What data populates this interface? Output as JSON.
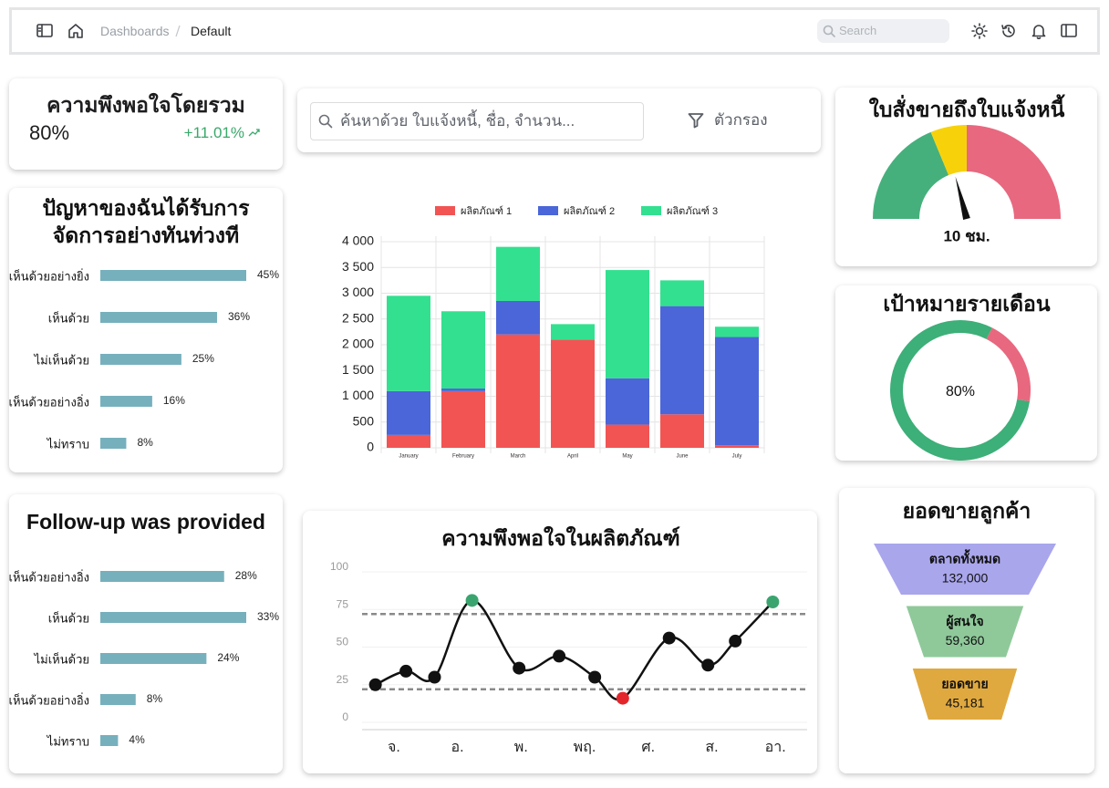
{
  "header": {
    "breadcrumb": [
      "Dashboards",
      "Default"
    ],
    "search_placeholder": "Search"
  },
  "kpi": {
    "title": "ความพึงพอใจโดยรวม",
    "value": "80%",
    "change": "+11.01%"
  },
  "search_bar": {
    "placeholder": "ค้นหาด้วย ใบแจ้งหนี้, ชื่อ, จำนวน...",
    "filter_label": "ตัวกรอง"
  },
  "chart_data": [
    {
      "type": "bar",
      "orientation": "horizontal",
      "title": [
        "ปัญหาของฉันได้รับการ",
        "จัดการอย่างทันท่วงที"
      ],
      "categories": [
        "เห็นด้วยอย่างยิ่ง",
        "เห็นด้วย",
        "ไม่เห็นด้วย",
        "เห็นด้วยอย่างอิ่ง",
        "ไม่ทราบ"
      ],
      "values": [
        45,
        36,
        25,
        16,
        8
      ],
      "value_labels": [
        "45%",
        "36%",
        "25%",
        "16%",
        "8%"
      ],
      "color": "#76b0bd"
    },
    {
      "type": "bar",
      "orientation": "horizontal",
      "title": "Follow-up was provided",
      "categories": [
        "เห็นด้วยอย่างอิ่ง",
        "เห็นด้วย",
        "ไม่เห็นด้วย",
        "เห็นด้วยอย่างอิ่ง",
        "ไม่ทราบ"
      ],
      "values": [
        28,
        33,
        24,
        8,
        4
      ],
      "value_labels": [
        "28%",
        "33%",
        "24%",
        "8%",
        "4%"
      ],
      "color": "#76b0bd"
    },
    {
      "type": "bar",
      "stacked": true,
      "categories": [
        "January",
        "February",
        "March",
        "April",
        "May",
        "June",
        "July"
      ],
      "series": [
        {
          "name": "ผลิตภัณฑ์ 1",
          "color": "#f25454",
          "values": [
            250,
            1100,
            2200,
            2100,
            450,
            650,
            50
          ]
        },
        {
          "name": "ผลิตภัณฑ์ 2",
          "color": "#4a66d9",
          "values": [
            850,
            50,
            650,
            0,
            900,
            2100,
            2100
          ]
        },
        {
          "name": "ผลิตภัณฑ์ 3",
          "color": "#33e08f",
          "values": [
            1850,
            1500,
            1050,
            300,
            2100,
            500,
            200
          ]
        }
      ],
      "ylim": [
        0,
        4000
      ],
      "yticks": [
        0,
        500,
        {
          "value": 1000,
          "label": "1 000"
        },
        {
          "value": 1500,
          "label": "1 500"
        },
        {
          "value": 2000,
          "label": "2 000"
        },
        {
          "value": 2500,
          "label": "2 500"
        },
        {
          "value": 3000,
          "label": "3 000"
        },
        {
          "value": 3500,
          "label": "3 500"
        },
        {
          "value": 4000,
          "label": "4 000"
        }
      ],
      "grid": true
    },
    {
      "type": "line",
      "title": "ความพึงพอใจในผลิตภัณฑ์",
      "x": [
        -0.29,
        0.19,
        0.64,
        1.23,
        1.97,
        2.6,
        3.16,
        3.6,
        4.33,
        4.94,
        5.37,
        5.96
      ],
      "values": [
        25,
        34,
        30,
        81,
        36,
        44,
        30,
        16,
        56,
        38,
        54,
        80
      ],
      "point_colors": [
        "#111111",
        "#111111",
        "#111111",
        "#3aa46f",
        "#111111",
        "#111111",
        "#111111",
        "#e3262b",
        "#111111",
        "#111111",
        "#111111",
        "#3aa46f"
      ],
      "color": "#111111",
      "xlim": [
        -0.5,
        6.5
      ],
      "xticks": [
        {
          "value": 0,
          "label": "จ."
        },
        {
          "value": 1,
          "label": "อ."
        },
        {
          "value": 2,
          "label": "พ."
        },
        {
          "value": 3,
          "label": "พฤ."
        },
        {
          "value": 4,
          "label": "ศ."
        },
        {
          "value": 5,
          "label": "ส."
        },
        {
          "value": 6,
          "label": "อา."
        }
      ],
      "ylim": [
        0,
        100
      ],
      "yticks": [
        0,
        25,
        50,
        75,
        100
      ],
      "grid": true,
      "reference_lines": [
        72,
        22
      ]
    },
    {
      "type": "gauge",
      "title": "ใบสั่งขายถึงใบแจ้งหนี้",
      "value": 10,
      "value_label": "10 ชม.",
      "range": [
        0,
        24
      ],
      "bands": [
        {
          "from": 0,
          "to": 9,
          "color": "#45b07c"
        },
        {
          "from": 9,
          "to": 12,
          "color": "#f7d20b"
        },
        {
          "from": 12,
          "to": 24,
          "color": "#e8687f"
        }
      ]
    },
    {
      "type": "donut",
      "title": "เป้าหมายรายเดือน",
      "value": 80,
      "value_label": "80%",
      "max": 100,
      "colors": [
        "#3daf78",
        "#e8687f"
      ]
    },
    {
      "type": "funnel",
      "title": "ยอดขายลูกค้า",
      "categories": [
        "ตลาดทั้งหมด",
        "ผู้สนใจ",
        "ยอดขาย"
      ],
      "values": [
        132000,
        59360,
        45181
      ],
      "value_labels": [
        "132,000",
        "59,360",
        "45,181"
      ],
      "colors": [
        "#a9a6ec",
        "#8fc99a",
        "#e0a93f"
      ]
    }
  ]
}
